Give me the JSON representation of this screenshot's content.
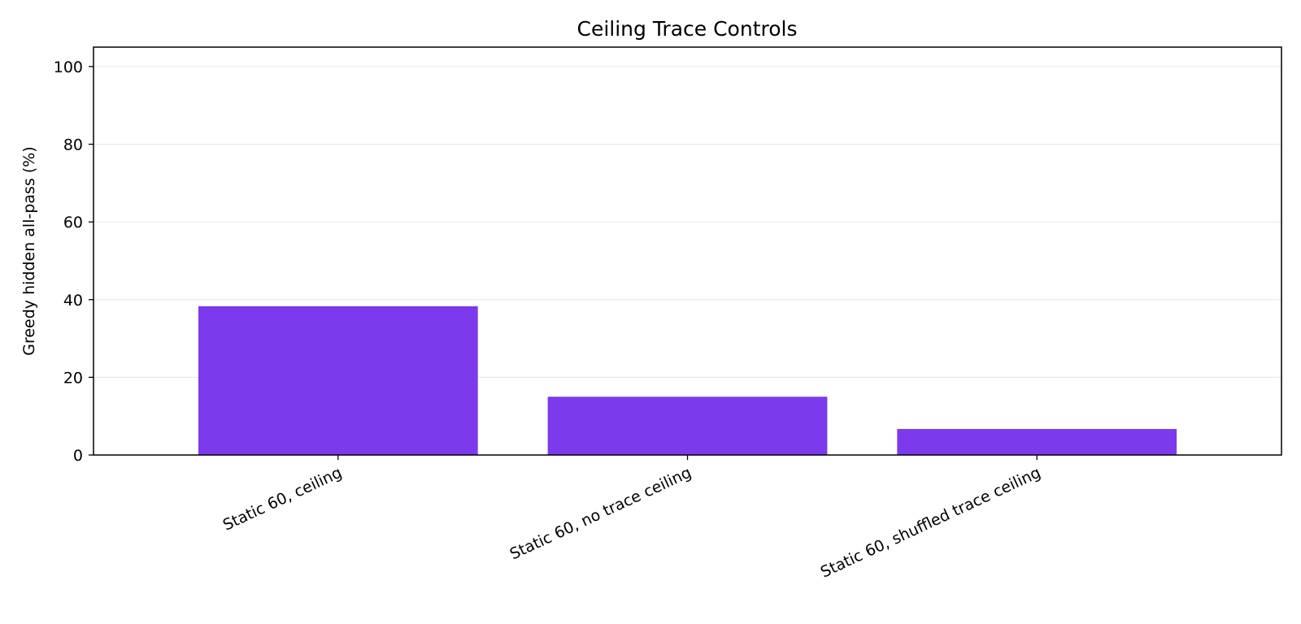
{
  "chart_data": {
    "type": "bar",
    "title": "Ceiling Trace Controls",
    "xlabel": "",
    "ylabel": "Greedy hidden all-pass (%)",
    "categories": [
      "Static 60, ceiling",
      "Static 60, no trace ceiling",
      "Static 60, shuffled trace ceiling"
    ],
    "values": [
      38.3,
      15.0,
      6.7
    ],
    "ylim": [
      0,
      105
    ],
    "yticks": [
      0,
      20,
      40,
      60,
      80,
      100
    ],
    "ytick_labels": [
      "0",
      "20",
      "40",
      "60",
      "80",
      "100"
    ],
    "grid": true,
    "bar_color": "#7c3aed"
  }
}
